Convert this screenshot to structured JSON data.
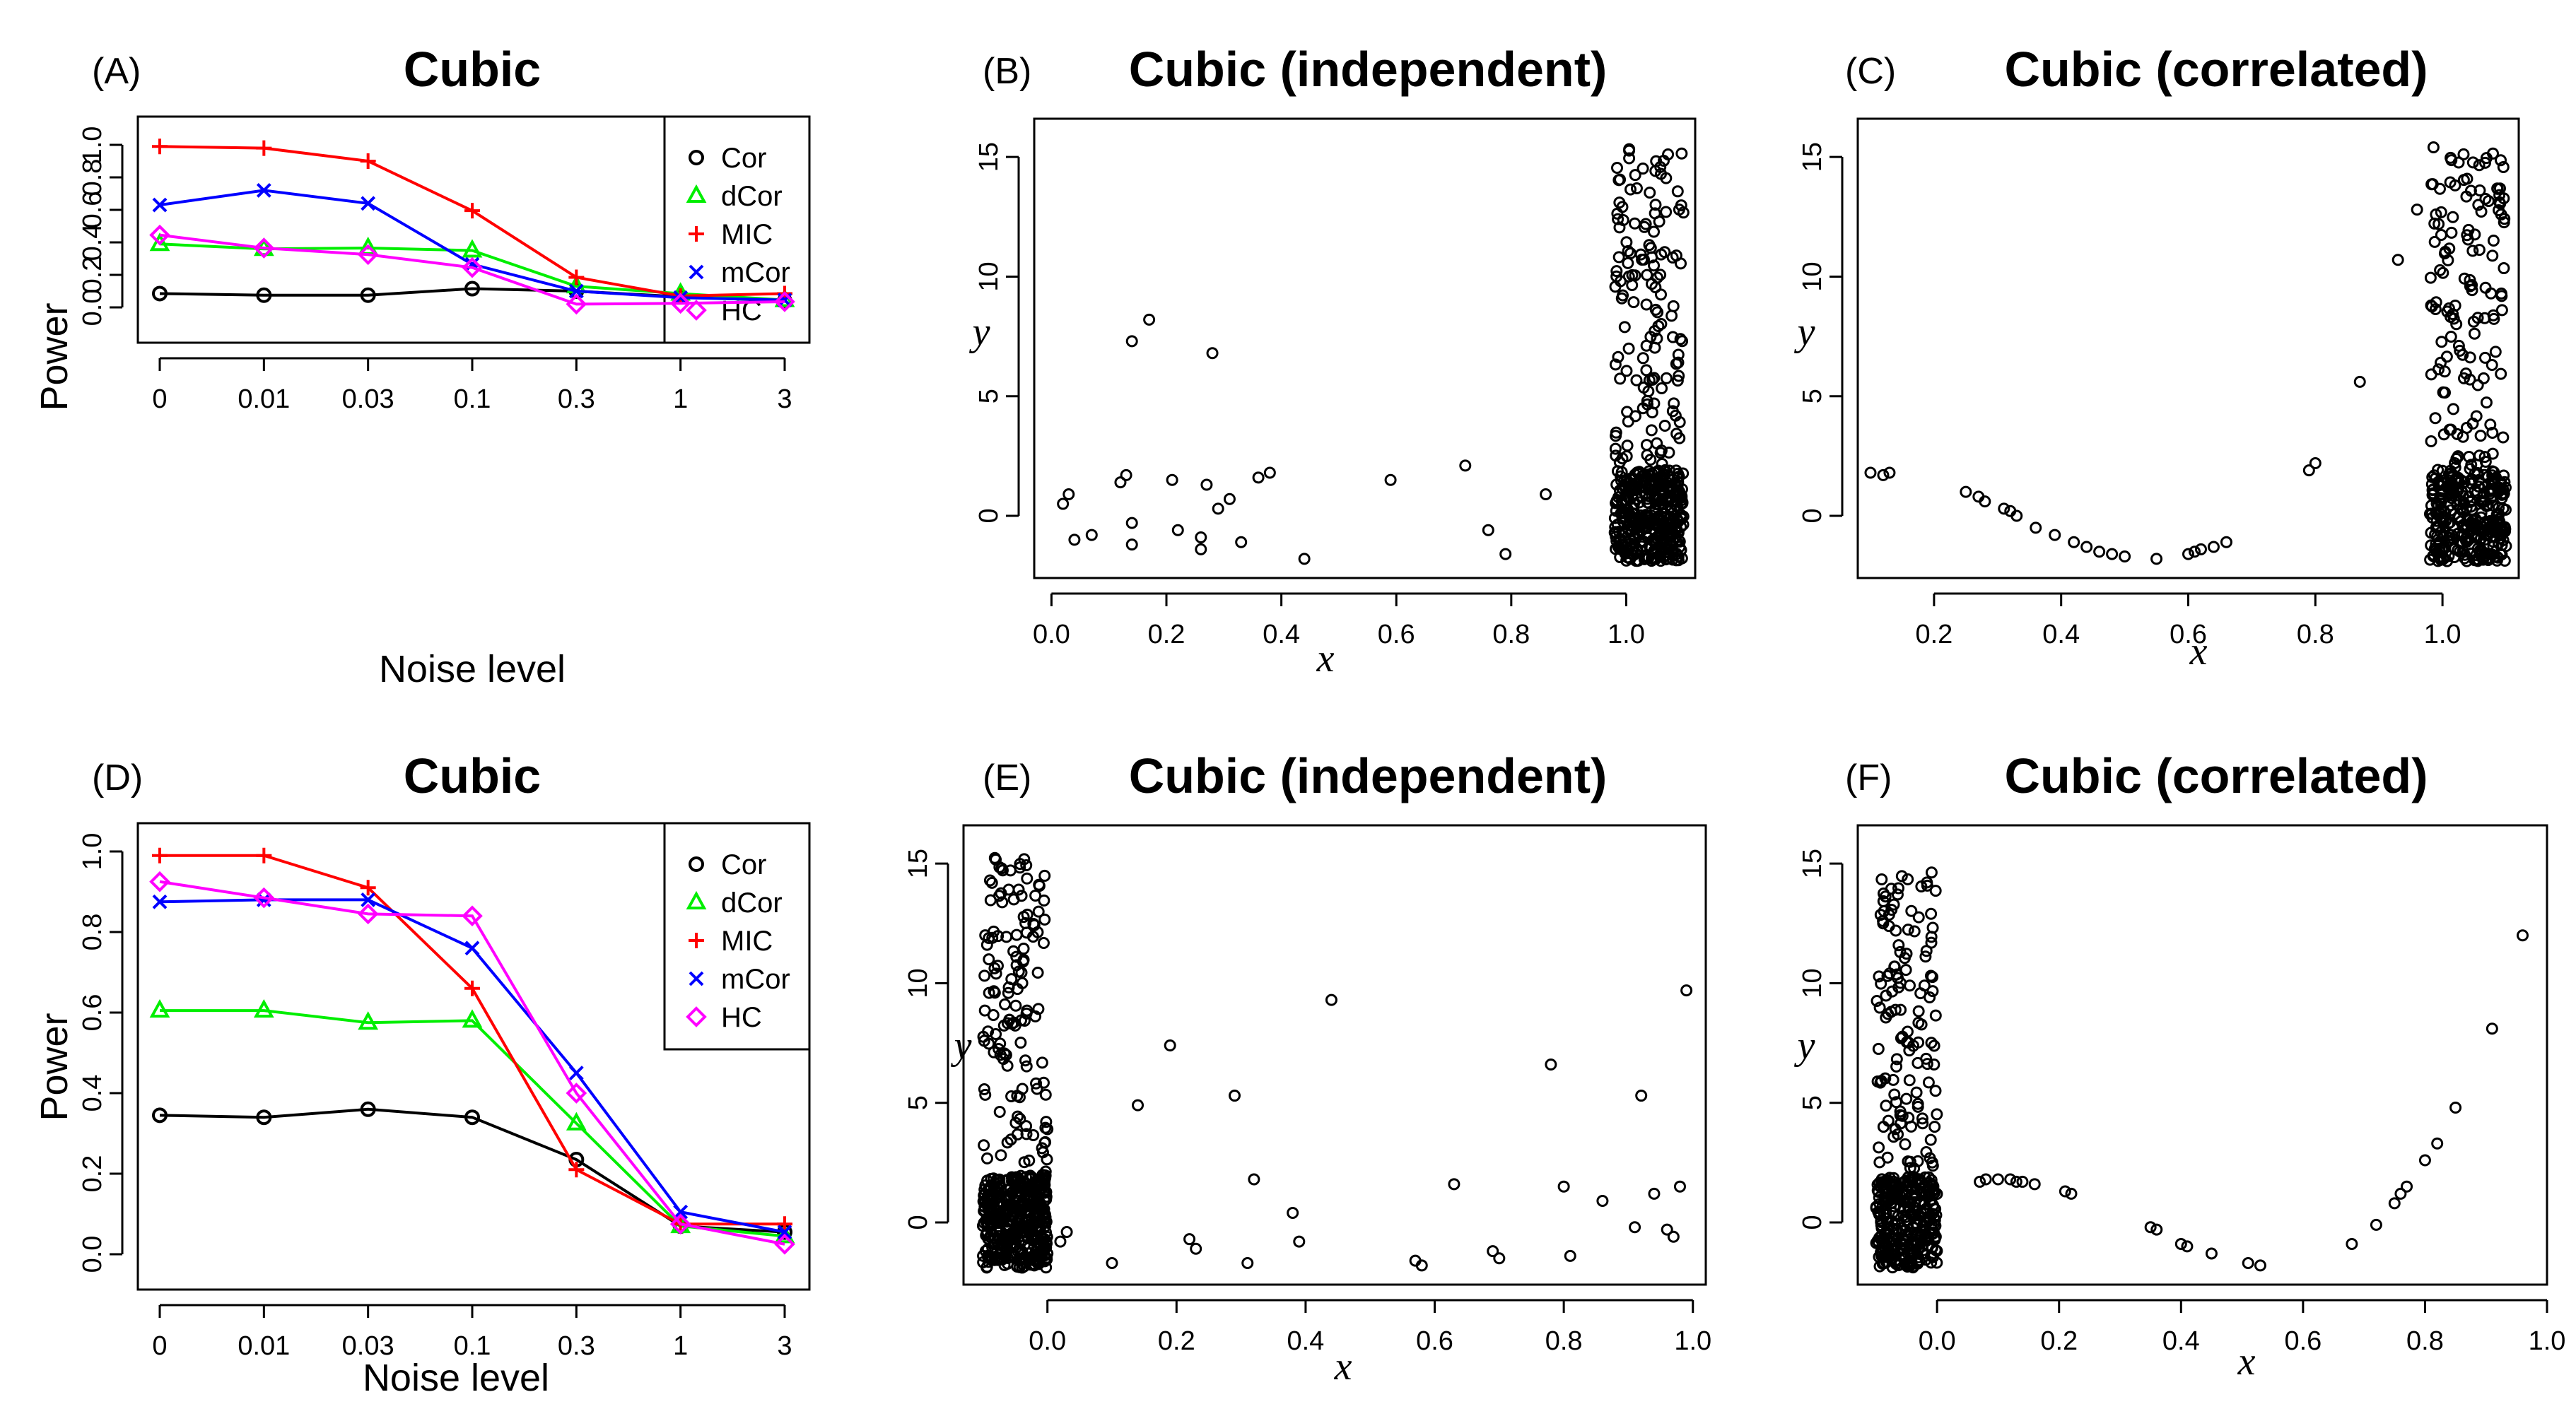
{
  "colors": {
    "Cor": "#000000",
    "dCor": "#00ee00",
    "MIC": "#ff0000",
    "mCor": "#0000ff",
    "HC": "#ff00ff"
  },
  "chart_data": [
    {
      "panel": "(A)",
      "type": "line",
      "title": "Cubic",
      "xlabel": "Noise level",
      "ylabel": "Power",
      "categories": [
        "0",
        "0.01",
        "0.03",
        "0.1",
        "0.3",
        "1",
        "3"
      ],
      "ylim": [
        0,
        1
      ],
      "yticks": [
        "0.0",
        "0.2",
        "0.4",
        "0.6",
        "0.8",
        "1.0"
      ],
      "legend": "top-right",
      "series": [
        {
          "name": "Cor",
          "marker": "circle",
          "values": [
            0.085,
            0.075,
            0.075,
            0.115,
            0.1,
            0.065,
            0.04
          ]
        },
        {
          "name": "dCor",
          "marker": "triangle",
          "values": [
            0.39,
            0.36,
            0.365,
            0.35,
            0.13,
            0.085,
            0.045
          ]
        },
        {
          "name": "MIC",
          "marker": "plus",
          "values": [
            0.99,
            0.98,
            0.9,
            0.595,
            0.185,
            0.07,
            0.085
          ]
        },
        {
          "name": "mCor",
          "marker": "x",
          "values": [
            0.63,
            0.72,
            0.64,
            0.265,
            0.1,
            0.06,
            0.045
          ]
        },
        {
          "name": "HC",
          "marker": "diamond",
          "values": [
            0.445,
            0.365,
            0.325,
            0.245,
            0.02,
            0.025,
            0.035
          ]
        }
      ]
    },
    {
      "panel": "(B)",
      "type": "scatter",
      "title": "Cubic (independent)",
      "xlabel": "x",
      "ylabel": "y",
      "xlim": [
        -0.03,
        1.12
      ],
      "ylim": [
        -2.6,
        16.6
      ],
      "xticks": [
        "0.0",
        "0.2",
        "0.4",
        "0.6",
        "0.8",
        "1.0"
      ],
      "yticks": [
        "0",
        "5",
        "10",
        "15"
      ],
      "points": [
        [
          0.02,
          0.5
        ],
        [
          0.03,
          0.9
        ],
        [
          0.04,
          -1.0
        ],
        [
          0.07,
          -0.8
        ],
        [
          0.12,
          1.4
        ],
        [
          0.13,
          1.7
        ],
        [
          0.14,
          -1.2
        ],
        [
          0.14,
          -0.3
        ],
        [
          0.14,
          7.3
        ],
        [
          0.17,
          8.2
        ],
        [
          0.21,
          1.5
        ],
        [
          0.22,
          -0.6
        ],
        [
          0.26,
          -0.9
        ],
        [
          0.26,
          -1.4
        ],
        [
          0.27,
          1.3
        ],
        [
          0.28,
          6.8
        ],
        [
          0.29,
          0.3
        ],
        [
          0.31,
          0.7
        ],
        [
          0.33,
          -1.1
        ],
        [
          0.36,
          1.6
        ],
        [
          0.38,
          1.8
        ],
        [
          0.44,
          -1.8
        ],
        [
          0.59,
          1.5
        ],
        [
          0.72,
          2.1
        ],
        [
          0.76,
          -0.6
        ],
        [
          0.79,
          -1.6
        ],
        [
          0.86,
          0.9
        ],
        [
          0.98,
          -0.7
        ]
      ],
      "cluster": {
        "x_range": [
          0.98,
          1.1
        ],
        "bands": [
          {
            "y_range": [
              -1.9,
              1.9
            ],
            "count": 360
          },
          {
            "y_range": [
              1.9,
              15.7
            ],
            "count": 140
          }
        ]
      }
    },
    {
      "panel": "(C)",
      "type": "scatter",
      "title": "Cubic (correlated)",
      "xlabel": "x",
      "ylabel": "y",
      "xlim": [
        0.08,
        1.12
      ],
      "ylim": [
        -2.6,
        16.6
      ],
      "xticks": [
        "0.2",
        "0.4",
        "0.6",
        "0.8",
        "1.0"
      ],
      "yticks": [
        "0",
        "5",
        "10",
        "15"
      ],
      "points": [
        [
          0.1,
          1.8
        ],
        [
          0.12,
          1.7
        ],
        [
          0.13,
          1.8
        ],
        [
          0.25,
          1.0
        ],
        [
          0.27,
          0.8
        ],
        [
          0.28,
          0.6
        ],
        [
          0.31,
          0.3
        ],
        [
          0.32,
          0.2
        ],
        [
          0.33,
          0.0
        ],
        [
          0.36,
          -0.5
        ],
        [
          0.39,
          -0.8
        ],
        [
          0.42,
          -1.1
        ],
        [
          0.44,
          -1.3
        ],
        [
          0.46,
          -1.5
        ],
        [
          0.48,
          -1.6
        ],
        [
          0.5,
          -1.7
        ],
        [
          0.55,
          -1.8
        ],
        [
          0.6,
          -1.6
        ],
        [
          0.61,
          -1.5
        ],
        [
          0.62,
          -1.4
        ],
        [
          0.64,
          -1.3
        ],
        [
          0.66,
          -1.1
        ],
        [
          0.79,
          1.9
        ],
        [
          0.8,
          2.2
        ],
        [
          0.87,
          5.6
        ],
        [
          0.93,
          10.7
        ],
        [
          0.96,
          12.8
        ]
      ],
      "cluster": {
        "x_range": [
          0.98,
          1.1
        ],
        "bands": [
          {
            "y_range": [
              -1.9,
              1.9
            ],
            "count": 300
          },
          {
            "y_range": [
              1.9,
              15.6
            ],
            "count": 140
          }
        ]
      }
    },
    {
      "panel": "(D)",
      "type": "line",
      "title": "Cubic",
      "xlabel": "Noise level",
      "ylabel": "Power",
      "categories": [
        "0",
        "0.01",
        "0.03",
        "0.1",
        "0.3",
        "1",
        "3"
      ],
      "ylim": [
        0,
        1
      ],
      "yticks": [
        "0.0",
        "0.2",
        "0.4",
        "0.6",
        "0.8",
        "1.0"
      ],
      "legend": "top-right",
      "series": [
        {
          "name": "Cor",
          "marker": "circle",
          "values": [
            0.345,
            0.34,
            0.36,
            0.34,
            0.235,
            0.07,
            0.055
          ]
        },
        {
          "name": "dCor",
          "marker": "triangle",
          "values": [
            0.605,
            0.605,
            0.575,
            0.58,
            0.325,
            0.07,
            0.045
          ]
        },
        {
          "name": "MIC",
          "marker": "plus",
          "values": [
            0.99,
            0.99,
            0.91,
            0.66,
            0.21,
            0.075,
            0.075
          ]
        },
        {
          "name": "mCor",
          "marker": "x",
          "values": [
            0.875,
            0.88,
            0.88,
            0.76,
            0.45,
            0.105,
            0.055
          ]
        },
        {
          "name": "HC",
          "marker": "diamond",
          "values": [
            0.925,
            0.885,
            0.845,
            0.84,
            0.4,
            0.075,
            0.025
          ]
        }
      ]
    },
    {
      "panel": "(E)",
      "type": "scatter",
      "title": "Cubic (independent)",
      "xlabel": "x",
      "ylabel": "y",
      "xlim": [
        -0.13,
        1.02
      ],
      "ylim": [
        -2.6,
        16.6
      ],
      "xticks": [
        "0.0",
        "0.2",
        "0.4",
        "0.6",
        "0.8",
        "1.0"
      ],
      "yticks": [
        "0",
        "5",
        "10",
        "15"
      ],
      "points": [
        [
          -0.02,
          -1.6
        ],
        [
          0.0,
          -1.3
        ],
        [
          0.02,
          -0.8
        ],
        [
          0.03,
          -0.4
        ],
        [
          0.1,
          -1.7
        ],
        [
          0.14,
          4.9
        ],
        [
          0.19,
          7.4
        ],
        [
          0.22,
          -0.7
        ],
        [
          0.23,
          -1.1
        ],
        [
          0.29,
          5.3
        ],
        [
          0.31,
          -1.7
        ],
        [
          0.32,
          1.8
        ],
        [
          0.38,
          0.4
        ],
        [
          0.39,
          -0.8
        ],
        [
          0.44,
          9.3
        ],
        [
          0.57,
          -1.6
        ],
        [
          0.58,
          -1.8
        ],
        [
          0.63,
          1.6
        ],
        [
          0.69,
          -1.2
        ],
        [
          0.7,
          -1.5
        ],
        [
          0.78,
          6.6
        ],
        [
          0.8,
          1.5
        ],
        [
          0.81,
          -1.4
        ],
        [
          0.86,
          0.9
        ],
        [
          0.91,
          -0.2
        ],
        [
          0.92,
          5.3
        ],
        [
          0.94,
          1.2
        ],
        [
          0.96,
          -0.3
        ],
        [
          0.97,
          -0.6
        ],
        [
          0.98,
          1.5
        ],
        [
          0.99,
          9.7
        ]
      ],
      "cluster": {
        "x_range": [
          -0.1,
          0.0
        ],
        "bands": [
          {
            "y_range": [
              -1.9,
              1.9
            ],
            "count": 380
          },
          {
            "y_range": [
              1.9,
              15.3
            ],
            "count": 140
          }
        ]
      }
    },
    {
      "panel": "(F)",
      "type": "scatter",
      "title": "Cubic (correlated)",
      "xlabel": "x",
      "ylabel": "y",
      "xlim": [
        -0.13,
        1.0
      ],
      "ylim": [
        -2.6,
        16.6
      ],
      "xticks": [
        "0.0",
        "0.2",
        "0.4",
        "0.6",
        "0.8",
        "1.0"
      ],
      "yticks": [
        "0",
        "5",
        "10",
        "15"
      ],
      "points": [
        [
          0.07,
          1.7
        ],
        [
          0.08,
          1.8
        ],
        [
          0.1,
          1.8
        ],
        [
          0.12,
          1.8
        ],
        [
          0.13,
          1.7
        ],
        [
          0.14,
          1.7
        ],
        [
          0.16,
          1.6
        ],
        [
          0.21,
          1.3
        ],
        [
          0.22,
          1.2
        ],
        [
          0.35,
          -0.2
        ],
        [
          0.36,
          -0.3
        ],
        [
          0.4,
          -0.9
        ],
        [
          0.41,
          -1.0
        ],
        [
          0.45,
          -1.3
        ],
        [
          0.51,
          -1.7
        ],
        [
          0.53,
          -1.8
        ],
        [
          0.68,
          -0.9
        ],
        [
          0.72,
          -0.1
        ],
        [
          0.75,
          0.8
        ],
        [
          0.76,
          1.2
        ],
        [
          0.77,
          1.5
        ],
        [
          0.8,
          2.6
        ],
        [
          0.82,
          3.3
        ],
        [
          0.85,
          4.8
        ],
        [
          0.91,
          8.1
        ],
        [
          0.96,
          12.0
        ]
      ],
      "cluster": {
        "x_range": [
          -0.1,
          0.0
        ],
        "bands": [
          {
            "y_range": [
              -1.9,
              1.9
            ],
            "count": 300
          },
          {
            "y_range": [
              1.9,
              14.7
            ],
            "count": 130
          }
        ]
      }
    }
  ]
}
